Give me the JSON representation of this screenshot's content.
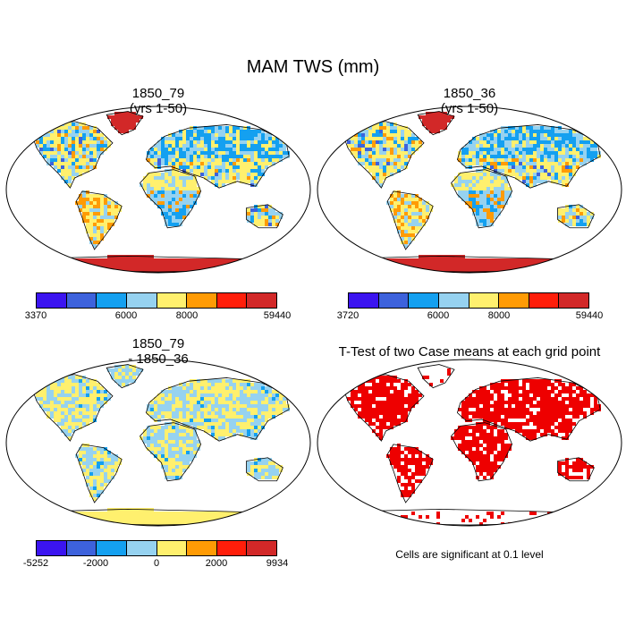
{
  "figure": {
    "title": "MAM TWS (mm)"
  },
  "panels": [
    {
      "id": "p1",
      "title_line1": "1850_79",
      "title_line2": "(yrs 1-50)"
    },
    {
      "id": "p2",
      "title_line1": "1850_36",
      "title_line2": "(yrs 1-50)"
    },
    {
      "id": "p3",
      "title_line1": "1850_79",
      "title_line2": "- 1850_36"
    },
    {
      "id": "p4",
      "title_line1": "T-Test of two Case means at each grid point",
      "title_line2": ""
    }
  ],
  "colors": {
    "scale": [
      "#3b14f0",
      "#3d62dc",
      "#14a0f0",
      "#96d2f0",
      "#fff06e",
      "#ff9b05",
      "#ff1e0a",
      "#d22828"
    ],
    "significant": "#ee0000",
    "antarctica_p1": "#d22828",
    "antarctica_p3": "#fff06e"
  },
  "legends": [
    {
      "id": "legend-1",
      "labels": [
        "3370",
        "6000",
        "8000",
        "59440"
      ]
    },
    {
      "id": "legend-2",
      "labels": [
        "3720",
        "6000",
        "8000",
        "59440"
      ]
    },
    {
      "id": "legend-3",
      "labels": [
        "-5252",
        "-2000",
        "0",
        "2000",
        "9934"
      ]
    }
  ],
  "note": "Cells are significant at 0.1 level"
}
